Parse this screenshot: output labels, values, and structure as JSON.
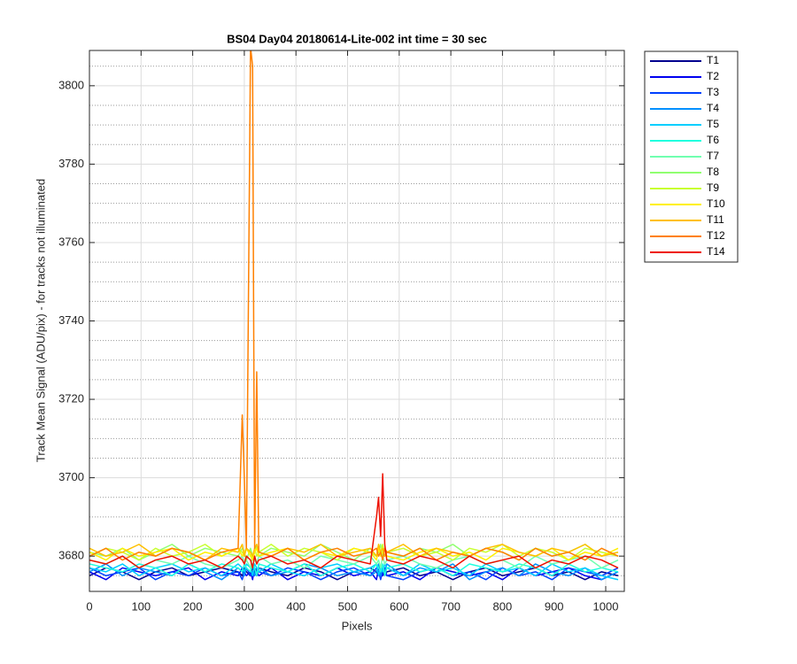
{
  "chart_data": {
    "type": "line",
    "title": "BS04 Day04 20180614-Lite-002 int time = 30 sec",
    "x_label": "Pixels",
    "y_label": "Track Mean Signal (ADU/pix) - for tracks not illuminated",
    "xlim": [
      0,
      1036
    ],
    "ylim": [
      3671,
      3809
    ],
    "xticks": [
      0,
      100,
      200,
      300,
      400,
      500,
      600,
      700,
      800,
      900,
      1000
    ],
    "yticks": [
      3680,
      3700,
      3720,
      3740,
      3760,
      3780,
      3800
    ],
    "y_minor_ticks": [
      3675,
      3685,
      3690,
      3695,
      3705,
      3710,
      3715,
      3725,
      3730,
      3735,
      3745,
      3750,
      3755,
      3765,
      3770,
      3775,
      3785,
      3790,
      3795,
      3805
    ],
    "grid": true,
    "minor_grid": true,
    "legend_position": "outside-right",
    "x": [
      0,
      32,
      64,
      96,
      128,
      160,
      192,
      224,
      256,
      288,
      296,
      300,
      304,
      312,
      316,
      320,
      324,
      328,
      352,
      384,
      416,
      448,
      480,
      512,
      544,
      556,
      560,
      564,
      568,
      572,
      576,
      608,
      640,
      672,
      704,
      736,
      768,
      800,
      832,
      864,
      896,
      928,
      960,
      992,
      1024
    ],
    "series": [
      {
        "name": "T1",
        "color": "#00008F",
        "values": [
          3675,
          3677,
          3676,
          3674,
          3676,
          3677,
          3675,
          3676,
          3677,
          3676,
          3675,
          3677,
          3676,
          3675,
          3677,
          3676,
          3675,
          3677,
          3676,
          3675,
          3677,
          3676,
          3674,
          3676,
          3677,
          3676,
          3675,
          3677,
          3676,
          3675,
          3676,
          3677,
          3675,
          3676,
          3674,
          3676,
          3677,
          3675,
          3676,
          3677,
          3675,
          3676,
          3674,
          3676,
          3675
        ]
      },
      {
        "name": "T2",
        "color": "#0000EF",
        "values": [
          3676,
          3674,
          3677,
          3676,
          3675,
          3676,
          3677,
          3674,
          3676,
          3675,
          3677,
          3676,
          3675,
          3676,
          3674,
          3677,
          3676,
          3675,
          3677,
          3674,
          3676,
          3675,
          3677,
          3675,
          3676,
          3674,
          3677,
          3676,
          3675,
          3677,
          3675,
          3676,
          3674,
          3677,
          3676,
          3675,
          3676,
          3674,
          3677,
          3675,
          3676,
          3677,
          3675,
          3674,
          3676
        ]
      },
      {
        "name": "T3",
        "color": "#0040FF",
        "values": [
          3677,
          3675,
          3676,
          3677,
          3674,
          3676,
          3675,
          3677,
          3675,
          3676,
          3674,
          3676,
          3677,
          3675,
          3676,
          3675,
          3677,
          3676,
          3675,
          3677,
          3676,
          3674,
          3676,
          3677,
          3675,
          3677,
          3676,
          3674,
          3676,
          3677,
          3675,
          3674,
          3676,
          3677,
          3675,
          3676,
          3674,
          3677,
          3675,
          3676,
          3674,
          3677,
          3676,
          3675,
          3677
        ]
      },
      {
        "name": "T4",
        "color": "#0090FF",
        "values": [
          3676,
          3678,
          3675,
          3677,
          3676,
          3675,
          3678,
          3676,
          3674,
          3677,
          3676,
          3675,
          3677,
          3676,
          3678,
          3675,
          3676,
          3677,
          3675,
          3676,
          3678,
          3677,
          3675,
          3676,
          3675,
          3676,
          3678,
          3675,
          3677,
          3676,
          3678,
          3675,
          3677,
          3676,
          3678,
          3674,
          3676,
          3677,
          3675,
          3678,
          3676,
          3675,
          3677,
          3674,
          3676
        ]
      },
      {
        "name": "T5",
        "color": "#00CFFF",
        "values": [
          3677,
          3676,
          3678,
          3675,
          3677,
          3678,
          3676,
          3677,
          3675,
          3678,
          3677,
          3676,
          3678,
          3677,
          3675,
          3678,
          3677,
          3676,
          3678,
          3676,
          3675,
          3677,
          3678,
          3676,
          3677,
          3678,
          3675,
          3677,
          3676,
          3678,
          3677,
          3675,
          3678,
          3676,
          3677,
          3675,
          3678,
          3676,
          3677,
          3675,
          3678,
          3676,
          3677,
          3675,
          3674
        ]
      },
      {
        "name": "T6",
        "color": "#20FFDF",
        "values": [
          3678,
          3677,
          3676,
          3678,
          3677,
          3675,
          3678,
          3676,
          3678,
          3677,
          3676,
          3678,
          3677,
          3676,
          3678,
          3677,
          3675,
          3678,
          3677,
          3676,
          3678,
          3675,
          3677,
          3678,
          3676,
          3678,
          3677,
          3676,
          3678,
          3675,
          3677,
          3678,
          3676,
          3677,
          3675,
          3678,
          3677,
          3676,
          3678,
          3677,
          3675,
          3678,
          3676,
          3677,
          3676
        ]
      },
      {
        "name": "T7",
        "color": "#70FFB0",
        "values": [
          3679,
          3678,
          3680,
          3677,
          3679,
          3678,
          3680,
          3678,
          3677,
          3679,
          3680,
          3678,
          3679,
          3677,
          3680,
          3679,
          3678,
          3680,
          3678,
          3679,
          3677,
          3680,
          3679,
          3678,
          3680,
          3678,
          3679,
          3677,
          3680,
          3678,
          3679,
          3680,
          3678,
          3677,
          3679,
          3680,
          3678,
          3679,
          3677,
          3680,
          3678,
          3679,
          3680,
          3677,
          3679
        ]
      },
      {
        "name": "T8",
        "color": "#90FF70",
        "values": [
          3681,
          3680,
          3682,
          3679,
          3681,
          3683,
          3680,
          3682,
          3681,
          3680,
          3682,
          3681,
          3679,
          3682,
          3680,
          3681,
          3683,
          3680,
          3682,
          3681,
          3680,
          3683,
          3681,
          3679,
          3682,
          3680,
          3681,
          3683,
          3680,
          3682,
          3681,
          3680,
          3682,
          3681,
          3683,
          3680,
          3682,
          3681,
          3679,
          3682,
          3680,
          3681,
          3683,
          3680,
          3681
        ]
      },
      {
        "name": "T9",
        "color": "#C8FF30",
        "values": [
          3680,
          3682,
          3681,
          3679,
          3682,
          3680,
          3681,
          3683,
          3680,
          3682,
          3681,
          3680,
          3682,
          3681,
          3679,
          3682,
          3680,
          3681,
          3683,
          3680,
          3682,
          3681,
          3679,
          3682,
          3681,
          3680,
          3682,
          3681,
          3683,
          3680,
          3681,
          3682,
          3680,
          3681,
          3679,
          3682,
          3681,
          3683,
          3680,
          3682,
          3681,
          3679,
          3682,
          3681,
          3680
        ]
      },
      {
        "name": "T10",
        "color": "#FFF000",
        "values": [
          3681,
          3679,
          3682,
          3680,
          3681,
          3682,
          3679,
          3681,
          3680,
          3682,
          3680,
          3681,
          3682,
          3680,
          3679,
          3681,
          3682,
          3680,
          3681,
          3682,
          3679,
          3681,
          3680,
          3682,
          3681,
          3679,
          3682,
          3680,
          3681,
          3682,
          3680,
          3679,
          3681,
          3682,
          3680,
          3681,
          3679,
          3682,
          3681,
          3680,
          3682,
          3679,
          3681,
          3680,
          3682
        ]
      },
      {
        "name": "T11",
        "color": "#FFC000",
        "values": [
          3682,
          3680,
          3681,
          3683,
          3680,
          3682,
          3681,
          3679,
          3682,
          3681,
          3683,
          3680,
          3682,
          3681,
          3680,
          3682,
          3683,
          3681,
          3680,
          3682,
          3681,
          3683,
          3680,
          3681,
          3682,
          3680,
          3683,
          3681,
          3682,
          3680,
          3681,
          3683,
          3680,
          3682,
          3681,
          3680,
          3682,
          3683,
          3681,
          3680,
          3682,
          3681,
          3683,
          3680,
          3681
        ]
      },
      {
        "name": "T12",
        "color": "#FF8000",
        "values": [
          3680,
          3682,
          3679,
          3681,
          3680,
          3682,
          3681,
          3679,
          3681,
          3682,
          3716,
          3700,
          3682,
          3810,
          3805,
          3682,
          3727,
          3681,
          3680,
          3682,
          3679,
          3681,
          3682,
          3680,
          3681,
          3682,
          3680,
          3681,
          3679,
          3682,
          3681,
          3680,
          3682,
          3679,
          3681,
          3680,
          3682,
          3681,
          3679,
          3682,
          3680,
          3681,
          3679,
          3682,
          3680
        ]
      },
      {
        "name": "T14",
        "color": "#EE1000",
        "values": [
          3679,
          3678,
          3680,
          3677,
          3679,
          3680,
          3678,
          3679,
          3677,
          3680,
          3679,
          3678,
          3680,
          3679,
          3677,
          3680,
          3678,
          3679,
          3680,
          3678,
          3679,
          3677,
          3680,
          3679,
          3678,
          3690,
          3695,
          3685,
          3701,
          3683,
          3679,
          3678,
          3680,
          3679,
          3677,
          3680,
          3678,
          3679,
          3680,
          3677,
          3679,
          3678,
          3680,
          3679,
          3677
        ]
      }
    ]
  }
}
